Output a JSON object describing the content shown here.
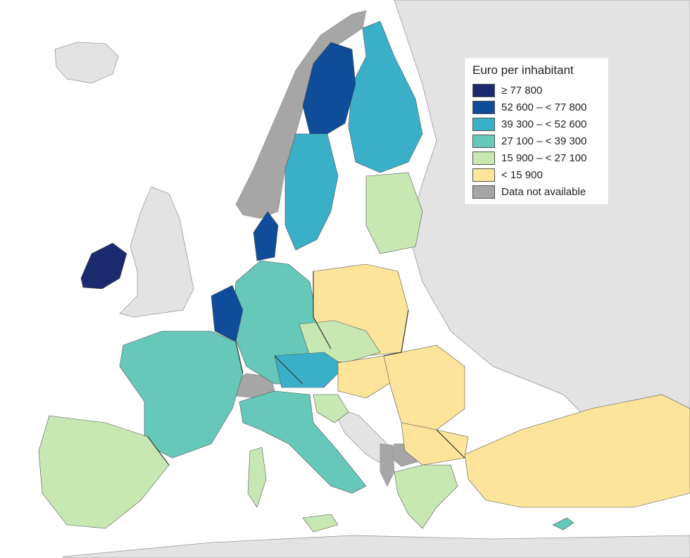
{
  "legend": {
    "title": "Euro per inhabitant",
    "classes": [
      {
        "label": "≥ 77 800",
        "color": "#1a2a6c"
      },
      {
        "label": "52 600 – < 77 800",
        "color": "#0f4c9a"
      },
      {
        "label": "39 300 – < 52 600",
        "color": "#3ab0c8"
      },
      {
        "label": "27 100 – < 39 300",
        "color": "#65c8b8"
      },
      {
        "label": "15 900 – < 27 100",
        "color": "#c7e7b3"
      },
      {
        "label": "< 15 900",
        "color": "#fce49a"
      },
      {
        "label": "Data not available",
        "color": "#a6a6a6"
      }
    ]
  },
  "palette": {
    "sea": "#ffffff",
    "non_eu_land": "#e3e3e3",
    "borders": "#333333"
  }
}
